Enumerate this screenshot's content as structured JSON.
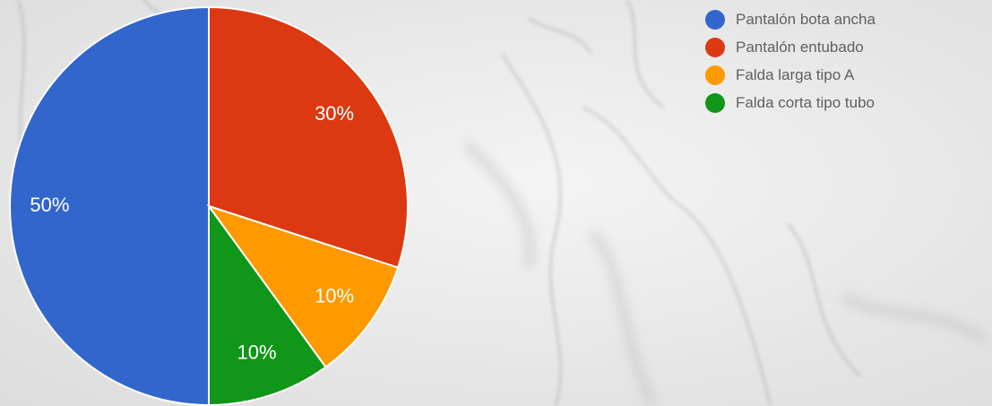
{
  "chart_data": {
    "type": "pie",
    "title": "",
    "start_angle_deg": 90,
    "direction": "clockwise",
    "legend_position": "top-right",
    "slices": [
      {
        "label": "Pantalón bota ancha",
        "value": 50,
        "value_label": "50%",
        "color": "#3366cc"
      },
      {
        "label": "Pantalón entubado",
        "value": 30,
        "value_label": "30%",
        "color": "#dc3912"
      },
      {
        "label": "Falda larga tipo A",
        "value": 10,
        "value_label": "10%",
        "color": "#ff9900"
      },
      {
        "label": "Falda corta tipo tubo",
        "value": 10,
        "value_label": "10%",
        "color": "#109618"
      }
    ]
  },
  "background": {
    "kind": "white marble texture"
  }
}
